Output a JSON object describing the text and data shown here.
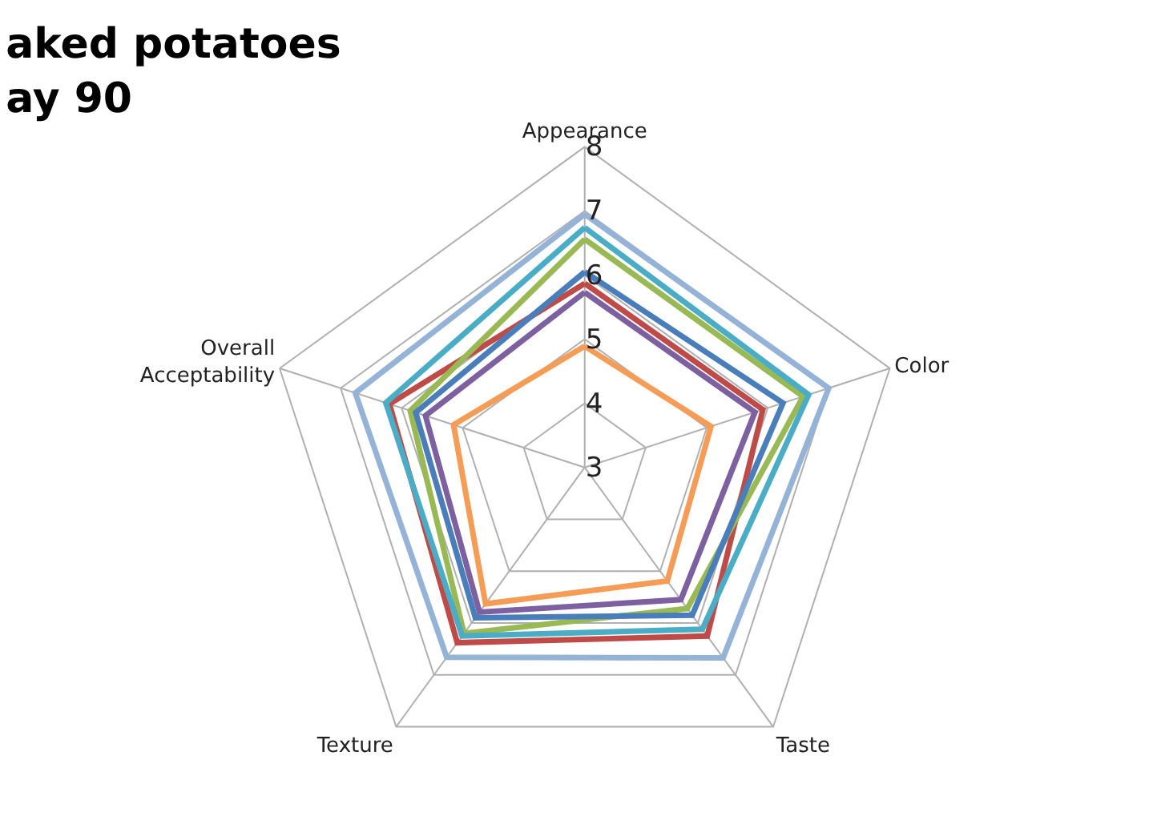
{
  "chart_data": {
    "type": "radar",
    "title": "aked potatoes\nay 90",
    "categories": [
      "Appearance",
      "Color",
      "Taste",
      "Texture",
      "Overall\nAcceptability"
    ],
    "ylim": [
      3,
      8
    ],
    "yticks": [
      3,
      4,
      5,
      6,
      7,
      8
    ],
    "grid": true,
    "marker": "none",
    "line_style": "solid",
    "series": [
      {
        "color": "#be4b48",
        "values": [
          5.87,
          5.92,
          6.25,
          6.38,
          6.2
        ]
      },
      {
        "color": "#98b954",
        "values": [
          6.56,
          6.58,
          5.72,
          6.2,
          5.86
        ]
      },
      {
        "color": "#7d60a0",
        "values": [
          5.73,
          5.79,
          5.55,
          5.79,
          5.61
        ]
      },
      {
        "color": "#4bacc6",
        "values": [
          6.74,
          6.67,
          6.12,
          6.25,
          6.26
        ]
      },
      {
        "color": "#f59d56",
        "values": [
          4.89,
          5.07,
          5.19,
          5.63,
          5.15
        ]
      },
      {
        "color": "#95b3d7",
        "values": [
          6.95,
          7.0,
          6.67,
          6.66,
          6.76
        ]
      },
      {
        "color": "#4a7ebb",
        "values": [
          6.05,
          6.25,
          5.85,
          5.9,
          5.77
        ]
      }
    ]
  }
}
